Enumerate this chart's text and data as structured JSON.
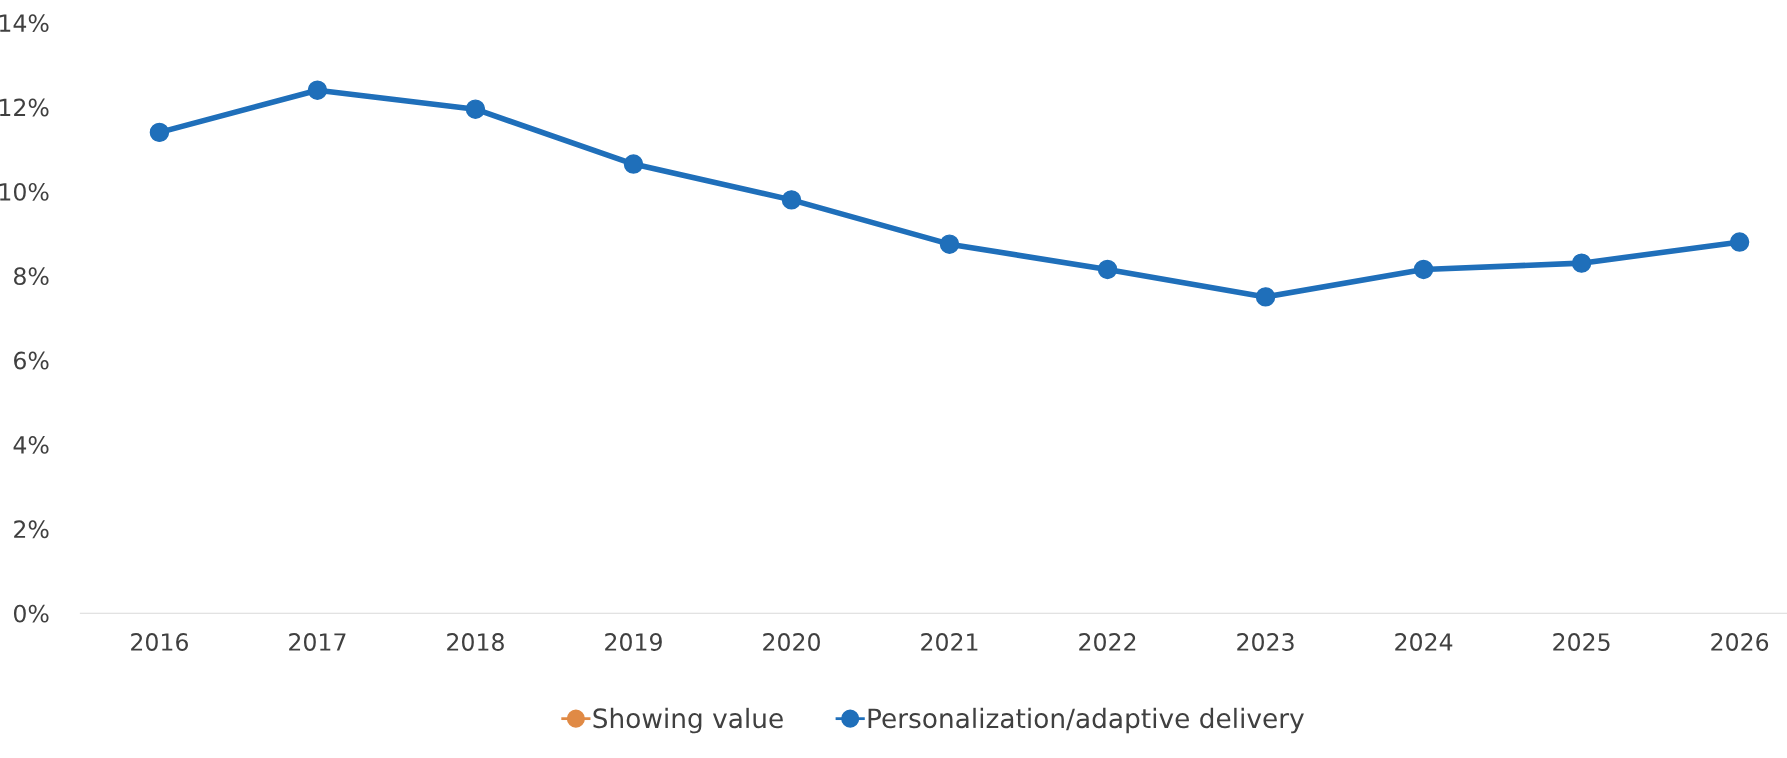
{
  "chart_data": {
    "type": "line",
    "categories": [
      "2016",
      "2017",
      "2018",
      "2019",
      "2020",
      "2021",
      "2022",
      "2023",
      "2024",
      "2025",
      "2026"
    ],
    "series": [
      {
        "name": "Showing value",
        "color": "#e08a45",
        "values": [
          null,
          null,
          null,
          null,
          null,
          null,
          null,
          null,
          null,
          null,
          null
        ]
      },
      {
        "name": "Personalization/adaptive delivery",
        "color": "#1f6fba",
        "values": [
          11.4,
          12.4,
          11.95,
          10.65,
          9.8,
          8.75,
          8.15,
          7.5,
          8.15,
          8.3,
          8.8
        ]
      }
    ],
    "ylim": [
      0,
      14
    ],
    "yticks": [
      {
        "value": 0,
        "label": "0%"
      },
      {
        "value": 2,
        "label": "2%"
      },
      {
        "value": 4,
        "label": "4%"
      },
      {
        "value": 6,
        "label": "6%"
      },
      {
        "value": 8,
        "label": "8%"
      },
      {
        "value": 10,
        "label": "10%"
      },
      {
        "value": 12,
        "label": "12%"
      },
      {
        "value": 14,
        "label": "14%"
      }
    ],
    "marker": "circle",
    "line_style": "solid",
    "legend": "bottom",
    "grid": false
  }
}
